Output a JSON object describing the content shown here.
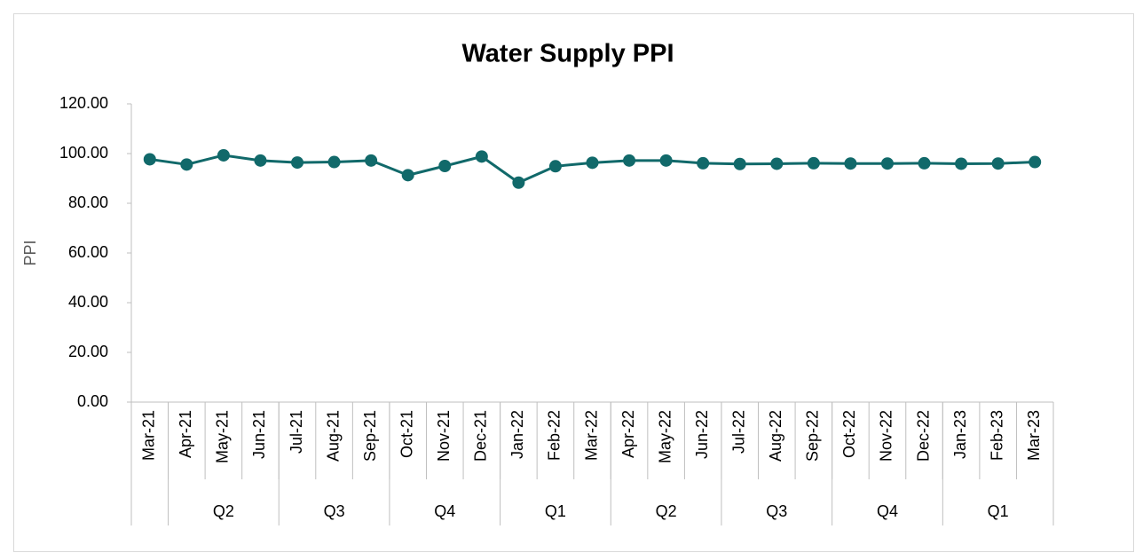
{
  "chart_data": {
    "type": "line",
    "title": "Water Supply PPI",
    "y_label": "PPI",
    "categories": [
      "Mar-21",
      "Apr-21",
      "May-21",
      "Jun-21",
      "Jul-21",
      "Aug-21",
      "Sep-21",
      "Oct-21",
      "Nov-21",
      "Dec-21",
      "Jan-22",
      "Feb-22",
      "Mar-22",
      "Apr-22",
      "May-22",
      "Jun-22",
      "Jul-22",
      "Aug-22",
      "Sep-22",
      "Oct-22",
      "Nov-22",
      "Dec-22",
      "Jan-23",
      "Feb-23",
      "Mar-23"
    ],
    "groups": [
      {
        "label": null,
        "size": 1
      },
      {
        "label": "Q2",
        "size": 3
      },
      {
        "label": "Q3",
        "size": 3
      },
      {
        "label": "Q4",
        "size": 3
      },
      {
        "label": "Q1",
        "size": 3
      },
      {
        "label": "Q2",
        "size": 3
      },
      {
        "label": "Q3",
        "size": 3
      },
      {
        "label": "Q4",
        "size": 3
      },
      {
        "label": "Q1",
        "size": 3
      }
    ],
    "series": [
      {
        "name": "PPI",
        "color": "#11696a",
        "values": [
          97.7,
          95.6,
          99.3,
          97.2,
          96.4,
          96.6,
          97.2,
          91.3,
          95.0,
          98.8,
          88.3,
          94.9,
          96.3,
          97.2,
          97.2,
          96.1,
          95.8,
          95.9,
          96.1,
          96.0,
          96.0,
          96.1,
          95.9,
          96.0,
          96.6
        ]
      }
    ],
    "ylim": [
      0,
      120
    ],
    "yticks": [
      {
        "value": 0,
        "label": "0.00"
      },
      {
        "value": 20,
        "label": "20.00"
      },
      {
        "value": 40,
        "label": "40.00"
      },
      {
        "value": 60,
        "label": "60.00"
      },
      {
        "value": 80,
        "label": "80.00"
      },
      {
        "value": 100,
        "label": "100.00"
      },
      {
        "value": 120,
        "label": "120.00"
      }
    ],
    "grid": false,
    "legend": false
  }
}
